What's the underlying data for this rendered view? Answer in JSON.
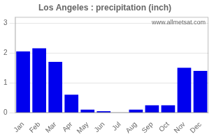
{
  "chart_data": {
    "type": "bar",
    "title": "Los Angeles : precipitation (inch)",
    "categories": [
      "Jan",
      "Feb",
      "Mar",
      "Apr",
      "May",
      "Jun",
      "Jul",
      "Aug",
      "Sep",
      "Oct",
      "Nov",
      "Dec"
    ],
    "values": [
      2.05,
      2.15,
      1.7,
      0.6,
      0.1,
      0.05,
      0.01,
      0.1,
      0.25,
      0.25,
      1.5,
      1.4
    ],
    "color": "#0000ee",
    "ylim": [
      0,
      3.2
    ],
    "yticks": [
      0,
      1,
      2,
      3
    ],
    "grid": true,
    "annotations": [
      "www.allmetsat.com"
    ]
  }
}
